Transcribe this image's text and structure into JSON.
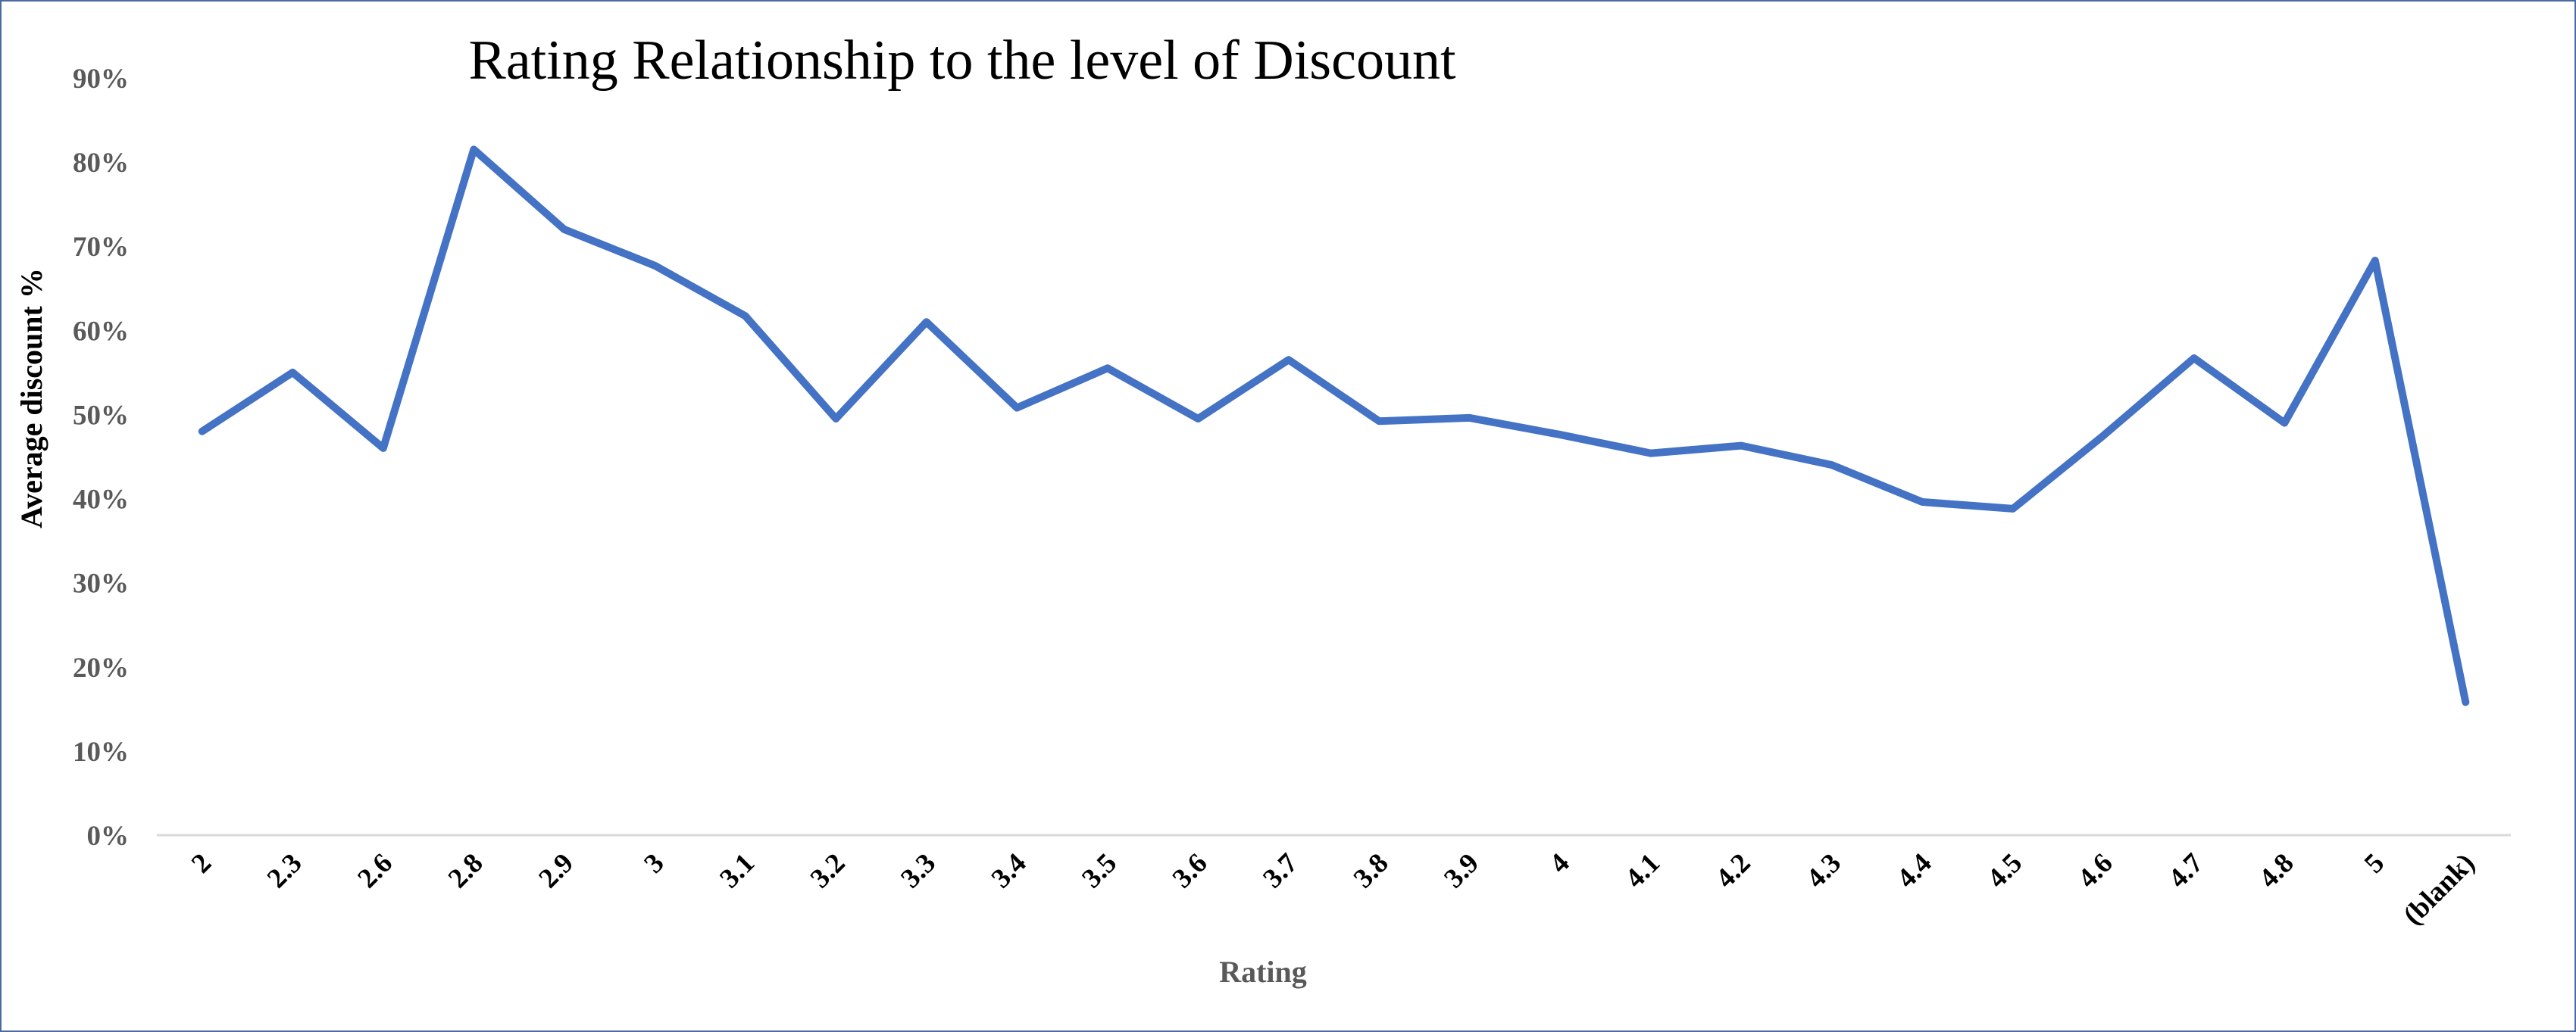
{
  "chart_data": {
    "type": "line",
    "title": "Rating Relationship to the level of Discount",
    "xlabel": "Rating",
    "ylabel": "Average discount %",
    "categories": [
      "2",
      "2.3",
      "2.6",
      "2.8",
      "2.9",
      "3",
      "3.1",
      "3.2",
      "3.3",
      "3.4",
      "3.5",
      "3.6",
      "3.7",
      "3.8",
      "3.9",
      "4",
      "4.1",
      "4.2",
      "4.3",
      "4.4",
      "4.5",
      "4.6",
      "4.7",
      "4.8",
      "5",
      "(blank)"
    ],
    "series": [
      {
        "values": [
          48,
          55,
          46,
          81.5,
          72,
          67.7,
          61.7,
          49.5,
          61,
          50.8,
          55.5,
          49.5,
          56.5,
          49.2,
          49.6,
          47.6,
          45.4,
          46.3,
          44,
          39.6,
          38.8,
          47.5,
          56.7,
          49,
          68.3,
          15.8
        ]
      }
    ],
    "yticks": [
      "0%",
      "10%",
      "20%",
      "30%",
      "40%",
      "50%",
      "60%",
      "70%",
      "80%",
      "90%"
    ],
    "ylim": [
      0,
      90
    ],
    "grid": false,
    "legend": "none",
    "line_color": "#4472c4"
  }
}
